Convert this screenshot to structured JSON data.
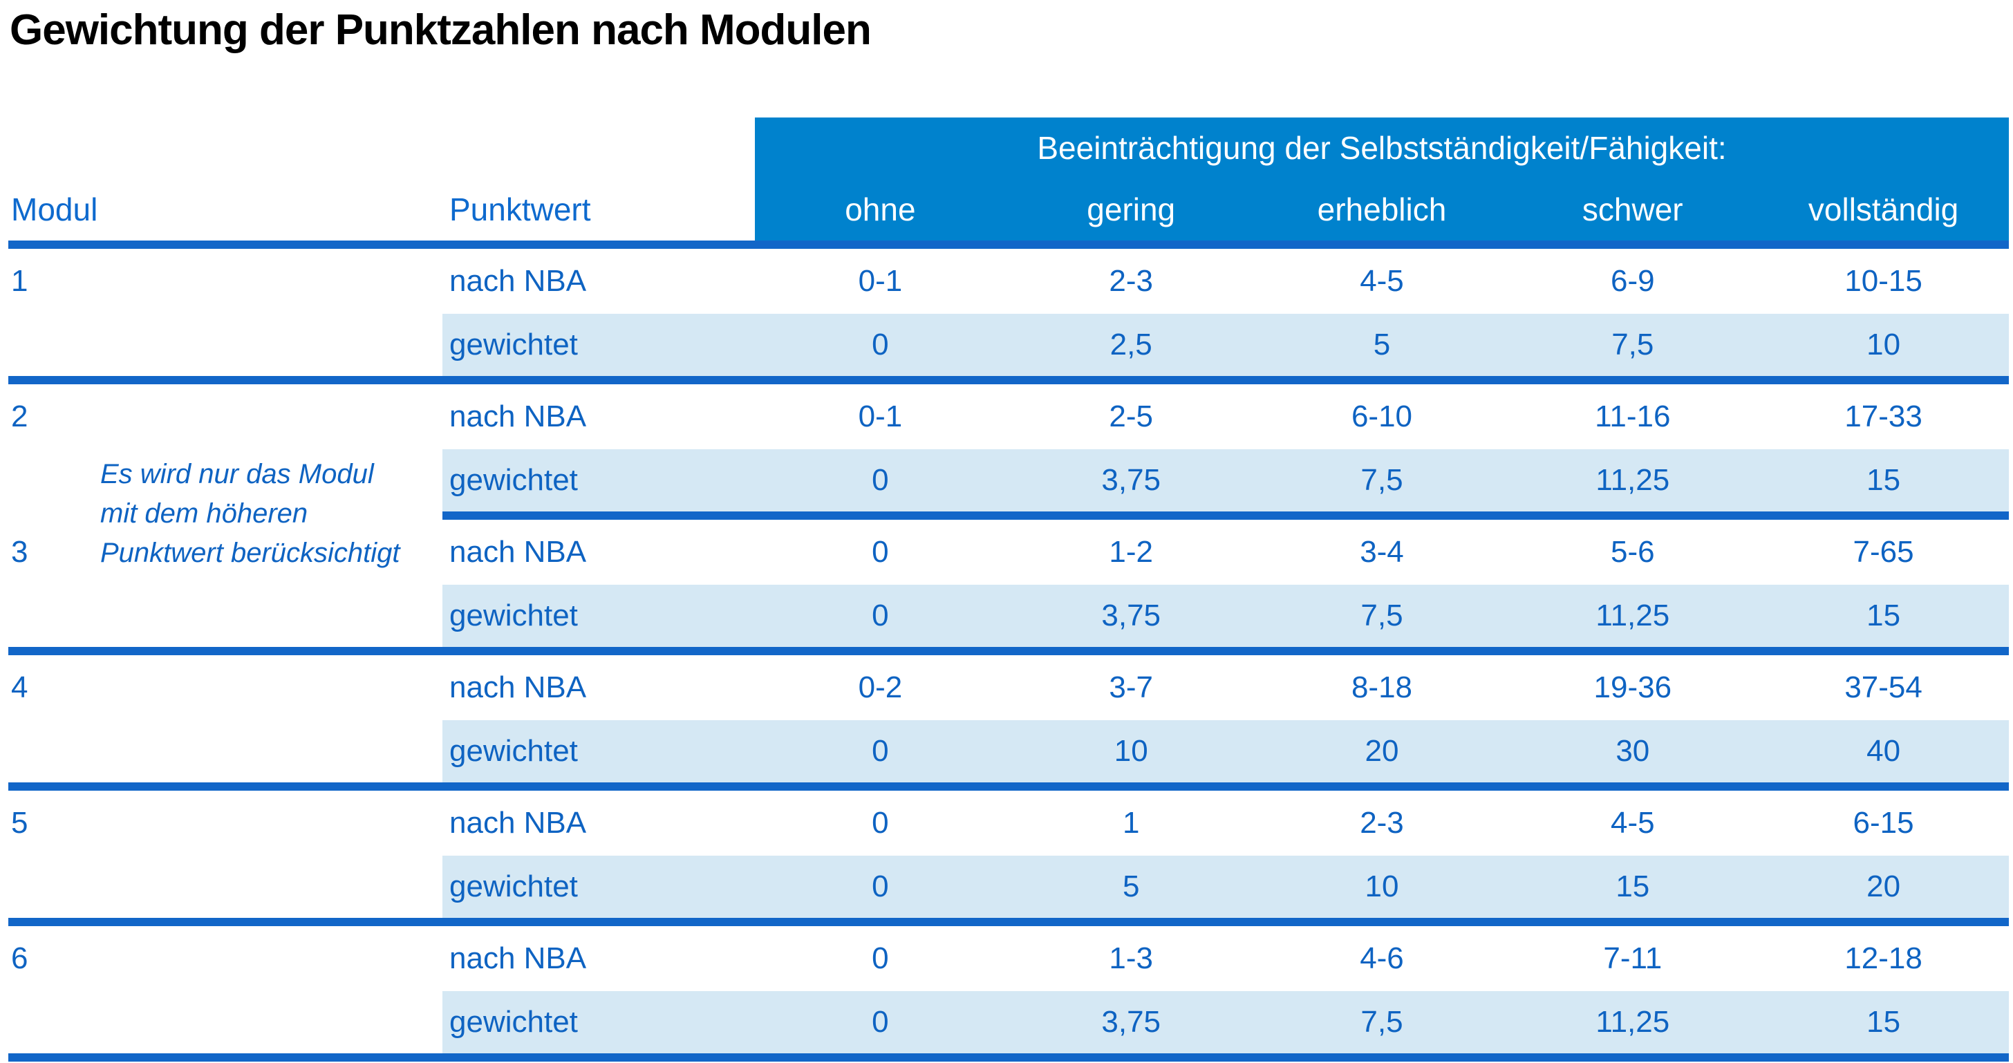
{
  "title": "Gewichtung der Punktzahlen nach Modulen",
  "table": {
    "group_header": "Beeinträchtigung der Selbstständigkeit/Fähigkeit:",
    "modul_header": "Modul",
    "punktwert_header": "Punktwert",
    "severity": [
      "ohne",
      "gering",
      "erheblich",
      "schwer",
      "vollständig"
    ],
    "nba_label": "nach NBA",
    "weighted_label": "gewichtet",
    "note_lines": [
      "Es wird nur das Modul",
      "mit dem höheren",
      "Punktwert berücksichtigt"
    ],
    "modules": [
      {
        "number": "1",
        "nba": [
          "0-1",
          "2-3",
          "4-5",
          "6-9",
          "10-15"
        ],
        "weighted": [
          "0",
          "2,5",
          "5",
          "7,5",
          "10"
        ],
        "separator": "full"
      },
      {
        "number": "2",
        "nba": [
          "0-1",
          "2-5",
          "6-10",
          "11-16",
          "17-33"
        ],
        "weighted": [
          "0",
          "3,75",
          "7,5",
          "11,25",
          "15"
        ],
        "separator": "partial"
      },
      {
        "number": "3",
        "nba": [
          "0",
          "1-2",
          "3-4",
          "5-6",
          "7-65"
        ],
        "weighted": [
          "0",
          "3,75",
          "7,5",
          "11,25",
          "15"
        ],
        "separator": "full"
      },
      {
        "number": "4",
        "nba": [
          "0-2",
          "3-7",
          "8-18",
          "19-36",
          "37-54"
        ],
        "weighted": [
          "0",
          "10",
          "20",
          "30",
          "40"
        ],
        "separator": "full"
      },
      {
        "number": "5",
        "nba": [
          "0",
          "1",
          "2-3",
          "4-5",
          "6-15"
        ],
        "weighted": [
          "0",
          "5",
          "10",
          "15",
          "20"
        ],
        "separator": "full"
      },
      {
        "number": "6",
        "nba": [
          "0",
          "1-3",
          "4-6",
          "7-11",
          "12-18"
        ],
        "weighted": [
          "0",
          "3,75",
          "7,5",
          "11,25",
          "15"
        ],
        "separator": "full"
      }
    ]
  },
  "colors": {
    "header_band": "#0082cd",
    "separator_line": "#1266c8",
    "weighted_row_background": "#d5e8f4",
    "text_blue": "#0e63c2",
    "header_text_blue": "#0e6ace",
    "band_text": "#ffffff",
    "title_text": "#000000"
  }
}
